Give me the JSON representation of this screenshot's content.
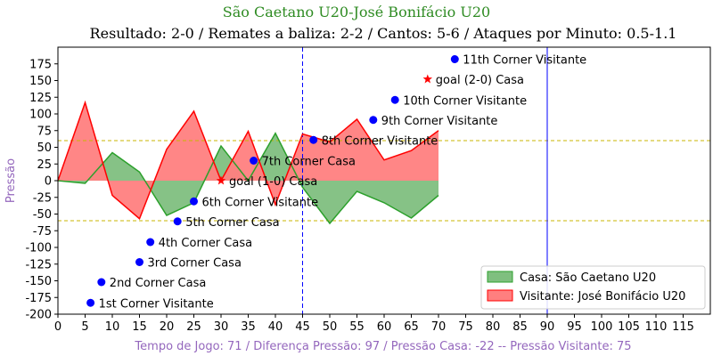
{
  "chart_data": {
    "type": "area",
    "title": "São Caetano U20-José Bonifácio U20",
    "subtitle": "Resultado: 2-0 / Remates a baliza: 2-2 / Cantos: 5-6 / Ataques por Minuto: 0.5-1.1",
    "ylabel": "Pressão",
    "xlabel": "Tempo de Jogo: 71 / Diferença Pressão: 97 / Pressão Casa: -22 -- Pressão Visitante: 75",
    "xlim": [
      0,
      120
    ],
    "ylim": [
      -200,
      200
    ],
    "xticks": [
      0,
      5,
      10,
      15,
      20,
      25,
      30,
      35,
      40,
      45,
      50,
      55,
      60,
      65,
      70,
      75,
      80,
      85,
      90,
      95,
      100,
      105,
      110,
      115
    ],
    "yticks": [
      -200,
      -175,
      -150,
      -125,
      -100,
      -75,
      -50,
      -25,
      0,
      25,
      50,
      75,
      100,
      125,
      150,
      175
    ],
    "series": [
      {
        "name": "Casa: São Caetano U20",
        "color": "#2ca02c",
        "fill": "#7fbf7f",
        "x": [
          0,
          5,
          10,
          15,
          20,
          25,
          30,
          35,
          40,
          45,
          50,
          55,
          60,
          65,
          70
        ],
        "values": [
          0,
          -4,
          42,
          13,
          -52,
          -33,
          52,
          0,
          71,
          -10,
          -64,
          -16,
          -33,
          -56,
          -22
        ]
      },
      {
        "name": "Visitante: José Bonifácio U20",
        "color": "#ff0000",
        "fill": "#ff7f7f",
        "x": [
          0,
          5,
          10,
          15,
          20,
          25,
          30,
          35,
          40,
          45,
          50,
          55,
          60,
          65,
          70
        ],
        "values": [
          0,
          117,
          -22,
          -57,
          47,
          104,
          0,
          74,
          -36,
          70,
          58,
          92,
          31,
          45,
          75
        ]
      }
    ],
    "hlines": [
      {
        "y": 60,
        "color": "#c8b400",
        "style": "dashed"
      },
      {
        "y": -60,
        "color": "#c8b400",
        "style": "dashed"
      }
    ],
    "vlines": [
      {
        "x": 45,
        "color": "#0000ff",
        "style": "dashed"
      },
      {
        "x": 90,
        "color": "#0000ff",
        "style": "solid"
      }
    ],
    "annotations": [
      {
        "x": 6,
        "y": -183,
        "label": "1st Corner Visitante",
        "marker": "dot",
        "color": "#0000ff"
      },
      {
        "x": 8,
        "y": -152,
        "label": "2nd Corner Casa",
        "marker": "dot",
        "color": "#0000ff"
      },
      {
        "x": 15,
        "y": -122,
        "label": "3rd Corner Casa",
        "marker": "dot",
        "color": "#0000ff"
      },
      {
        "x": 17,
        "y": -92,
        "label": "4th Corner Casa",
        "marker": "dot",
        "color": "#0000ff"
      },
      {
        "x": 22,
        "y": -61,
        "label": "5th Corner Casa",
        "marker": "dot",
        "color": "#0000ff"
      },
      {
        "x": 25,
        "y": -31,
        "label": "6th Corner Visitante",
        "marker": "dot",
        "color": "#0000ff"
      },
      {
        "x": 30,
        "y": 0,
        "label": "goal (1-0) Casa",
        "marker": "star",
        "color": "#ff0000"
      },
      {
        "x": 36,
        "y": 30,
        "label": "7th Corner Casa",
        "marker": "dot",
        "color": "#0000ff"
      },
      {
        "x": 47,
        "y": 61,
        "label": "8th Corner Visitante",
        "marker": "dot",
        "color": "#0000ff"
      },
      {
        "x": 58,
        "y": 91,
        "label": "9th Corner Visitante",
        "marker": "dot",
        "color": "#0000ff"
      },
      {
        "x": 62,
        "y": 121,
        "label": "10th Corner Visitante",
        "marker": "dot",
        "color": "#0000ff"
      },
      {
        "x": 68,
        "y": 152,
        "label": "goal (2-0) Casa",
        "marker": "star",
        "color": "#ff0000"
      },
      {
        "x": 73,
        "y": 182,
        "label": "11th Corner Visitante",
        "marker": "dot",
        "color": "#0000ff"
      }
    ],
    "legend": {
      "position": "lower-right",
      "items": [
        "Casa: São Caetano U20",
        "Visitante: José Bonifácio U20"
      ]
    },
    "grid": false
  }
}
